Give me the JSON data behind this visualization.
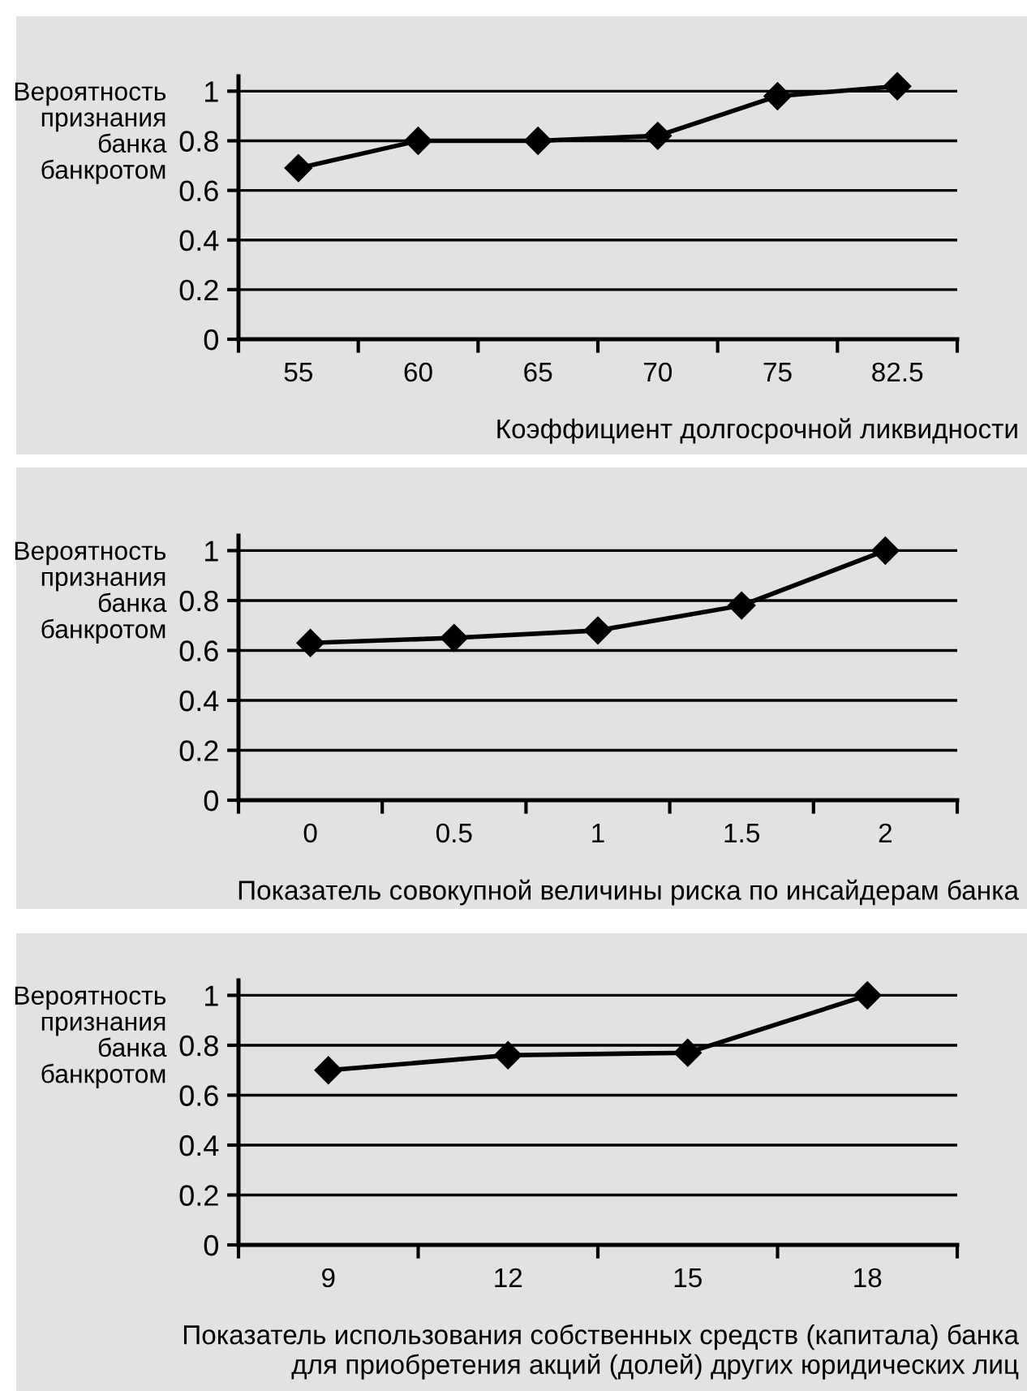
{
  "chart_data": [
    {
      "type": "line",
      "ylabel": "Вероятность\nпризнания\nбанка\nбанкротом",
      "xlabel": "Коэффициент долгосрочной ликвидности",
      "categories": [
        "55",
        "60",
        "65",
        "70",
        "75",
        "82.5"
      ],
      "series": [
        {
          "color": "#000000",
          "values": [
            0.69,
            0.8,
            0.8,
            0.82,
            0.98,
            1.02
          ]
        }
      ],
      "ylim": [
        0,
        1.06
      ],
      "yticks": [
        0,
        0.2,
        0.4,
        0.6,
        0.8,
        1
      ],
      "grid": "y",
      "marker": "diamond",
      "line_style": "solid"
    },
    {
      "type": "line",
      "ylabel": "Вероятность\nпризнания\nбанка\nбанкротом",
      "xlabel": "Показатель совокупной величины риска по инсайдерам банка",
      "categories": [
        "0",
        "0.5",
        "1",
        "1.5",
        "2"
      ],
      "series": [
        {
          "color": "#000000",
          "values": [
            0.63,
            0.65,
            0.68,
            0.78,
            1.0
          ]
        }
      ],
      "ylim": [
        0,
        1.06
      ],
      "yticks": [
        0,
        0.2,
        0.4,
        0.6,
        0.8,
        1
      ],
      "grid": "y",
      "marker": "diamond",
      "line_style": "solid"
    },
    {
      "type": "line",
      "ylabel": "Вероятность\nпризнания\nбанка\nбанкротом",
      "xlabel": "Показатель использования собственных средств (капитала) банка\nдля приобретения акций (долей) других юридических лиц",
      "categories": [
        "9",
        "12",
        "15",
        "18"
      ],
      "series": [
        {
          "color": "#000000",
          "values": [
            0.7,
            0.76,
            0.77,
            1.0
          ]
        }
      ],
      "ylim": [
        0,
        1.06
      ],
      "yticks": [
        0,
        0.2,
        0.4,
        0.6,
        0.8,
        1
      ],
      "grid": "y",
      "marker": "diamond",
      "line_style": "solid"
    }
  ]
}
